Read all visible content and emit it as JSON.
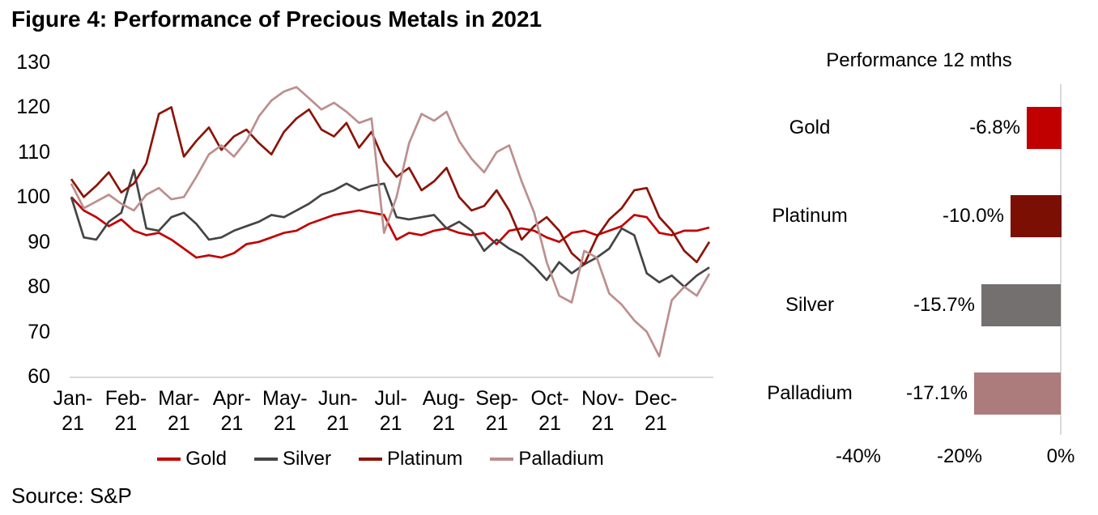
{
  "title": "Figure 4: Performance of Precious Metals in 2021",
  "source": "Source: S&P",
  "chart_data": [
    {
      "type": "line",
      "title": "Figure 4: Performance of Precious Metals in 2021",
      "xlabel": "",
      "ylabel": "",
      "ylim": [
        60,
        130
      ],
      "y_ticks": [
        130,
        120,
        110,
        100,
        90,
        80,
        70,
        60
      ],
      "x_tick_labels": [
        "Jan-21",
        "Feb-21",
        "Mar-21",
        "Apr-21",
        "May-21",
        "Jun-21",
        "Jul-21",
        "Aug-21",
        "Sep-21",
        "Oct-21",
        "Nov-21",
        "Dec-21"
      ],
      "grid": false,
      "legend_position": "bottom",
      "axis_color": "#D9D9D9",
      "series": [
        {
          "name": "Gold",
          "color": "#C00000",
          "values": [
            100,
            97,
            95.5,
            93.5,
            95,
            92.5,
            91.5,
            92,
            90.5,
            88.5,
            86.5,
            87,
            86.5,
            87.5,
            89.5,
            90,
            91,
            92,
            92.5,
            94,
            95,
            96,
            96.5,
            97,
            96.5,
            96,
            90.5,
            92,
            91.5,
            92.5,
            93,
            92,
            91.5,
            92,
            89.5,
            92.5,
            93,
            92.5,
            91,
            90,
            92,
            92.5,
            91.5,
            92.5,
            93.5,
            96,
            95.5,
            92,
            91.5,
            92.5,
            92.5,
            93.2
          ]
        },
        {
          "name": "Silver",
          "color": "#454545",
          "values": [
            100,
            91,
            90.5,
            94.5,
            96.5,
            106,
            93,
            92.5,
            95.5,
            96.5,
            94,
            90.5,
            91,
            92.5,
            93.5,
            94.5,
            96,
            95.5,
            97,
            98.5,
            100.5,
            101.5,
            103,
            101.5,
            102.5,
            103,
            95.5,
            95,
            95.5,
            96,
            93,
            94.5,
            92.5,
            88,
            90.5,
            88.5,
            87,
            84.5,
            81.5,
            85.5,
            83,
            85,
            86.5,
            88.5,
            93,
            91.5,
            83,
            81,
            82.5,
            80,
            82.5,
            84.3
          ]
        },
        {
          "name": "Platinum",
          "color": "#8B1408",
          "values": [
            104,
            100,
            102.5,
            105.5,
            101,
            103,
            107.5,
            118.5,
            120,
            109,
            112.5,
            115.5,
            110.5,
            113.5,
            115,
            112,
            109.5,
            114.5,
            117.5,
            119.5,
            115,
            113.5,
            116.5,
            111,
            114.5,
            108,
            104.5,
            106.5,
            101.5,
            103.5,
            106.5,
            100,
            97,
            98,
            101.5,
            97,
            90.5,
            93.5,
            95.5,
            92.5,
            87.5,
            85,
            91,
            95,
            97.5,
            101.5,
            102,
            95.5,
            92.5,
            88,
            85.5,
            90
          ]
        },
        {
          "name": "Palladium",
          "color": "#BC8F8F",
          "values": [
            103,
            97.5,
            99,
            100.5,
            98.5,
            97,
            100.5,
            102,
            99.5,
            100,
            104.5,
            109.5,
            111.5,
            109,
            112.5,
            118,
            121.5,
            123.5,
            124.5,
            122,
            119.5,
            121,
            119,
            116.5,
            117.5,
            92,
            100,
            112,
            118.5,
            117,
            119,
            112.5,
            108.5,
            105.5,
            110,
            111.5,
            103.5,
            96.5,
            85.5,
            78,
            76.5,
            88,
            86.5,
            78.5,
            76,
            72.5,
            70,
            64.5,
            77,
            80,
            78,
            82.9
          ]
        }
      ]
    },
    {
      "type": "bar",
      "orientation": "horizontal",
      "title": "Performance 12 mths",
      "categories": [
        "Gold",
        "Platinum",
        "Silver",
        "Palladium"
      ],
      "values": [
        -6.8,
        -10.0,
        -15.7,
        -17.1
      ],
      "value_labels": [
        "-6.8%",
        "-10.0%",
        "-15.7%",
        "-17.1%"
      ],
      "colors": [
        "#C00000",
        "#7B0F04",
        "#747070",
        "#AC7B7B"
      ],
      "xlim": [
        -40,
        0
      ],
      "x_ticks": [
        -40,
        -20,
        0
      ],
      "x_tick_labels": [
        "-40%",
        "-20%",
        "0%"
      ],
      "axis_color": "#D9D9D9"
    }
  ]
}
